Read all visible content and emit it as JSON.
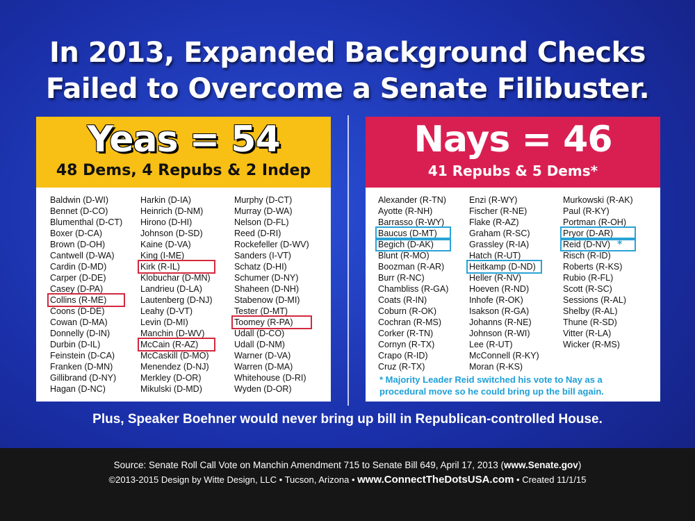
{
  "title": {
    "line1": "In 2013, Expanded Background Checks",
    "line2": "Failed to Overcome a Senate Filibuster."
  },
  "yeas": {
    "count_label": "Yeas = 54",
    "breakdown": "48 Dems, 4 Repubs & 2 Indep",
    "columns": [
      [
        "Baldwin (D-WI)",
        "Bennet (D-CO)",
        "Blumenthal (D-CT)",
        "Boxer (D-CA)",
        "Brown (D-OH)",
        "Cantwell (D-WA)",
        "Cardin (D-MD)",
        "Carper (D-DE)",
        "Casey (D-PA)",
        "Collins (R-ME)",
        "Coons (D-DE)",
        "Cowan (D-MA)",
        "Donnelly (D-IN)",
        "Durbin (D-IL)",
        "Feinstein (D-CA)",
        "Franken (D-MN)",
        "Gillibrand (D-NY)",
        "Hagan (D-NC)"
      ],
      [
        "Harkin (D-IA)",
        "Heinrich (D-NM)",
        "Hirono (D-HI)",
        "Johnson (D-SD)",
        "Kaine (D-VA)",
        "King (I-ME)",
        "Kirk (R-IL)",
        "Klobuchar (D-MN)",
        "Landrieu (D-LA)",
        "Lautenberg (D-NJ)",
        "Leahy (D-VT)",
        "Levin (D-MI)",
        "Manchin (D-WV)",
        "McCain (R-AZ)",
        "McCaskill (D-MO)",
        "Menendez (D-NJ)",
        "Merkley (D-OR)",
        "Mikulski (D-MD)"
      ],
      [
        "Murphy (D-CT)",
        "Murray (D-WA)",
        "Nelson (D-FL)",
        "Reed (D-RI)",
        "Rockefeller (D-WV)",
        "Sanders (I-VT)",
        "Schatz (D-HI)",
        "Schumer (D-NY)",
        "Shaheen (D-NH)",
        "Stabenow (D-MI)",
        "Tester (D-MT)",
        "Toomey (R-PA)",
        "Udall (D-CO)",
        "Udall (D-NM)",
        "Warner (D-VA)",
        "Warren (D-MA)",
        "Whitehouse (D-RI)",
        "Wyden (D-OR)"
      ]
    ],
    "highlighted": [
      "Collins (R-ME)",
      "Kirk (R-IL)",
      "McCain (R-AZ)",
      "Toomey (R-PA)"
    ],
    "highlight_color": "#d3283f",
    "header_color": "#f8bf14"
  },
  "nays": {
    "count_label": "Nays = 46",
    "breakdown": "41 Repubs & 5 Dems*",
    "columns": [
      [
        "Alexander (R-TN)",
        "Ayotte (R-NH)",
        "Barrasso (R-WY)",
        "Baucus (D-MT)",
        "Begich (D-AK)",
        "Blunt (R-MO)",
        "Boozman (R-AR)",
        "Burr (R-NC)",
        "Chambliss (R-GA)",
        "Coats (R-IN)",
        "Coburn (R-OK)",
        "Cochran (R-MS)",
        "Corker (R-TN)",
        "Cornyn (R-TX)",
        "Crapo (R-ID)",
        "Cruz (R-TX)"
      ],
      [
        "Enzi (R-WY)",
        "Fischer (R-NE)",
        "Flake (R-AZ)",
        "Graham (R-SC)",
        "Grassley (R-IA)",
        "Hatch (R-UT)",
        "Heitkamp (D-ND)",
        "Heller (R-NV)",
        "Hoeven (R-ND)",
        "Inhofe (R-OK)",
        "Isakson (R-GA)",
        "Johanns (R-NE)",
        "Johnson (R-WI)",
        "Lee (R-UT)",
        "McConnell (R-KY)",
        "Moran (R-KS)"
      ],
      [
        "Murkowski (R-AK)",
        "Paul (R-KY)",
        "Portman (R-OH)",
        "Pryor (D-AR)",
        "Reid (D-NV)",
        "Risch (R-ID)",
        "Roberts (R-KS)",
        "Rubio (R-FL)",
        "Scott (R-SC)",
        "Sessions (R-AL)",
        "Shelby (R-AL)",
        "Thune (R-SD)",
        "Vitter (R-LA)",
        "Wicker (R-MS)"
      ]
    ],
    "highlighted": [
      "Baucus (D-MT)",
      "Begich (D-AK)",
      "Heitkamp (D-ND)",
      "Pryor (D-AR)",
      "Reid (D-NV)"
    ],
    "highlight_color": "#2aa3d6",
    "header_color": "#d91f52",
    "reid_star": "*",
    "footnote": "* Majority Leader Reid switched his vote to Nay as a procedural move so he could bring up the bill again."
  },
  "plus_note": "Plus, Speaker Boehner would never bring up bill in Republican-controlled House.",
  "footer": {
    "source_prefix": "Source: Senate Roll Call Vote on Manchin Amendment 715 to Senate Bill 649, April 17, 2013 (",
    "source_link": "www.Senate.gov",
    "source_suffix": ")",
    "credits_prefix": "©2013-2015 Design by Witte Design, LLC • Tucson, Arizona •",
    "credits_site": "www.ConnectTheDotsUSA.com",
    "credits_suffix": "• Created 11/1/15"
  }
}
